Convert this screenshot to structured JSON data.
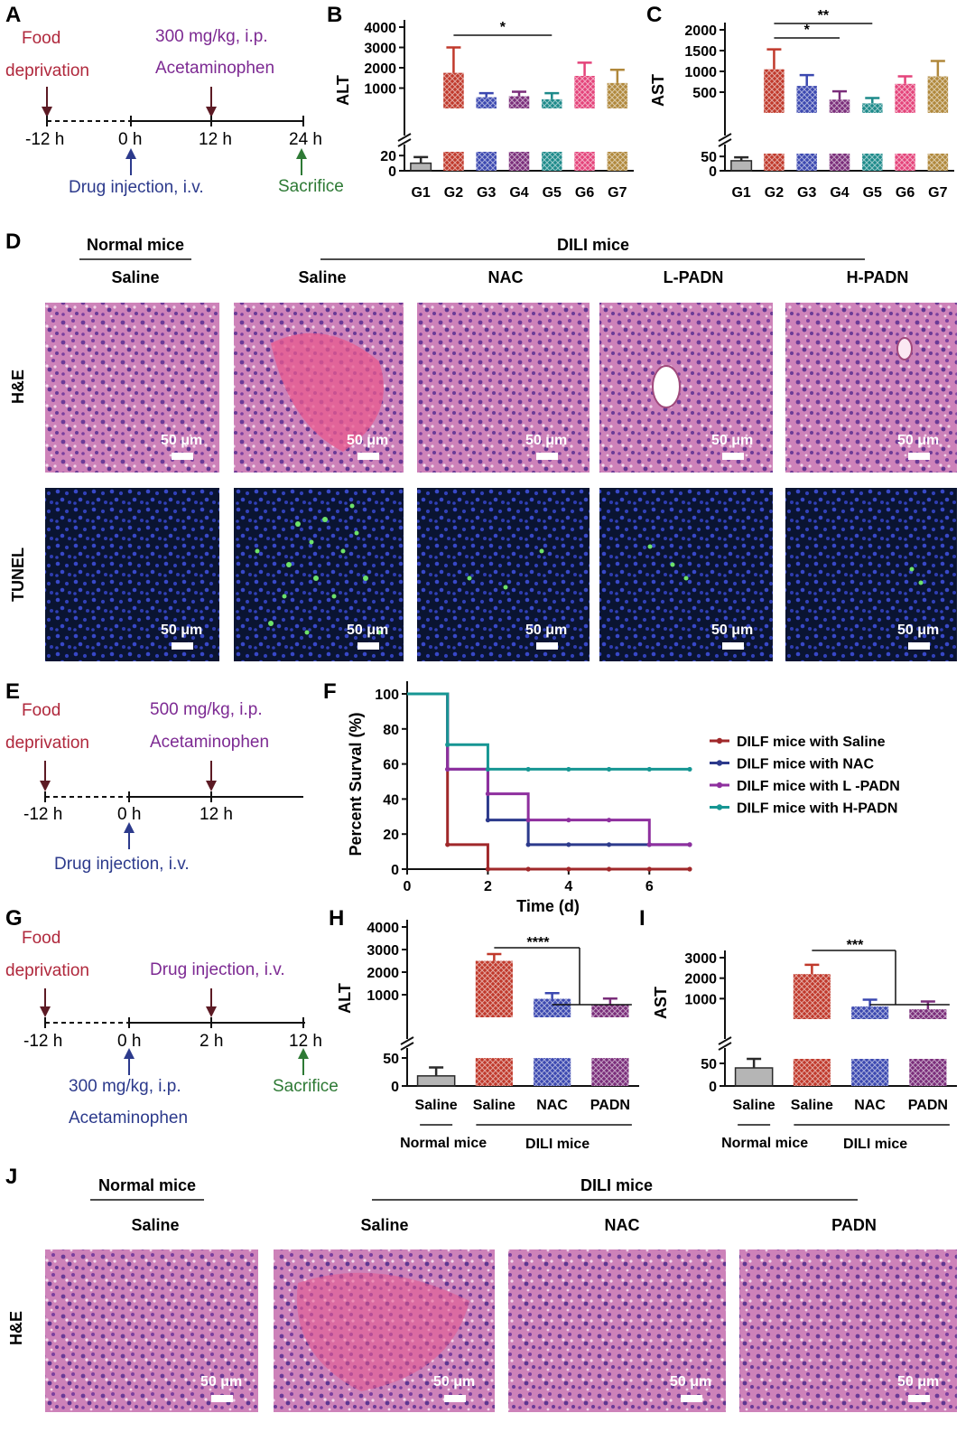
{
  "colors": {
    "food": "#b0283c",
    "apap": "#7d2a93",
    "drug": "#2c3a8c",
    "sac": "#2e7a35",
    "arrow": "#5c1a24",
    "he": "#c979b4",
    "tunel": "#101d3a",
    "tunel_nuc": "#3646c6",
    "tunel_pos": "#6ee36a",
    "groups": [
      "#2a2a2a",
      "#c0392b",
      "#3b48b0",
      "#7a2d7a",
      "#1d8a8a",
      "#e4437a",
      "#b0883b"
    ]
  },
  "panel_labels": [
    "A",
    "B",
    "C",
    "D",
    "E",
    "F",
    "G",
    "H",
    "I",
    "J"
  ],
  "scale_bar": "50 μm",
  "row_labels": {
    "he": "H&E",
    "tunel": "TUNEL"
  },
  "timeline_a": {
    "food_1": "Food",
    "food_2": "deprivation",
    "apap_1": "300 mg/kg, i.p.",
    "apap_2": "Acetaminophen",
    "t1": "-12 h",
    "t2": "0 h",
    "t3": "12 h",
    "t4": "24 h",
    "drug": "Drug injection, i.v.",
    "sac": "Sacrifice"
  },
  "timeline_e": {
    "food_1": "Food",
    "food_2": "deprivation",
    "apap_1": "500 mg/kg, i.p.",
    "apap_2": "Acetaminophen",
    "t1": "-12 h",
    "t2": "0 h",
    "t3": "12 h",
    "drug": "Drug injection, i.v."
  },
  "timeline_g": {
    "food_1": "Food",
    "food_2": "deprivation",
    "drug": "Drug injection, i.v.",
    "t1": "-12 h",
    "t2": "0 h",
    "t3": "2 h",
    "t4": "12 h",
    "apap_1": "300 mg/kg, i.p.",
    "apap_2": "Acetaminophen",
    "sac": "Sacrifice"
  },
  "panel_d": {
    "normal": "Normal mice",
    "dili": "DILI mice",
    "columns": [
      "Saline",
      "Saline",
      "NAC",
      "L-PADN",
      "H-PADN"
    ]
  },
  "panel_j": {
    "normal": "Normal mice",
    "dili": "DILI mice",
    "columns": [
      "Saline",
      "Saline",
      "NAC",
      "PADN"
    ]
  },
  "chart_data": [
    {
      "id": "B",
      "type": "bar",
      "ylabel": "ALT",
      "categories": [
        "G1",
        "G2",
        "G3",
        "G4",
        "G5",
        "G6",
        "G7"
      ],
      "values": [
        10,
        1750,
        550,
        600,
        450,
        1600,
        1250
      ],
      "errors": [
        8,
        1250,
        200,
        220,
        300,
        650,
        650
      ],
      "y_ticks_upper": [
        "4000",
        "3000",
        "2000",
        "1000"
      ],
      "y_ticks_lower": [
        "20",
        "0"
      ],
      "ylim_upper": [
        0,
        4000
      ],
      "ylim_lower": [
        0,
        25
      ],
      "significance": [
        "*"
      ]
    },
    {
      "id": "C",
      "type": "bar",
      "ylabel": "AST",
      "categories": [
        "G1",
        "G2",
        "G3",
        "G4",
        "G5",
        "G6",
        "G7"
      ],
      "values": [
        35,
        1050,
        650,
        320,
        230,
        700,
        880
      ],
      "errors": [
        12,
        480,
        260,
        200,
        130,
        180,
        370
      ],
      "y_ticks_upper": [
        "2000",
        "1500",
        "1000",
        "500"
      ],
      "y_ticks_lower": [
        "50",
        "0"
      ],
      "ylim_upper": [
        0,
        2000
      ],
      "ylim_lower": [
        0,
        60
      ],
      "significance": [
        "**",
        "*"
      ]
    },
    {
      "id": "F",
      "type": "line",
      "xlabel": "Time (d)",
      "ylabel": "Percent Surval (%)",
      "x_ticks": [
        "0",
        "2",
        "4",
        "6"
      ],
      "y_ticks": [
        "0",
        "20",
        "40",
        "60",
        "80",
        "100"
      ],
      "xlim": [
        0,
        7
      ],
      "ylim": [
        0,
        100
      ],
      "series": [
        {
          "name": "DILF mice with Saline",
          "color": "#a0282a",
          "times": [
            0,
            1,
            2,
            7
          ],
          "values": [
            100,
            14,
            0,
            0
          ]
        },
        {
          "name": "DILF mice with NAC",
          "color": "#2c3a8c",
          "times": [
            0,
            1,
            2,
            3,
            7
          ],
          "values": [
            100,
            57,
            28,
            14,
            14
          ]
        },
        {
          "name": "DILF mice with L -PADN",
          "color": "#8e2f9e",
          "times": [
            0,
            1,
            2,
            3,
            6,
            7
          ],
          "values": [
            100,
            57,
            43,
            28,
            14,
            14
          ]
        },
        {
          "name": "DILF mice with H-PADN",
          "color": "#169693",
          "times": [
            0,
            1,
            2,
            7
          ],
          "values": [
            100,
            71,
            57,
            57
          ]
        }
      ]
    },
    {
      "id": "H",
      "type": "bar",
      "ylabel": "ALT",
      "categories": [
        "Saline",
        "Saline",
        "NAC",
        "PADN"
      ],
      "group_labels": [
        "Normal mice",
        "DILI mice"
      ],
      "values": [
        18,
        2500,
        820,
        580
      ],
      "errors": [
        15,
        300,
        250,
        250
      ],
      "y_ticks_upper": [
        "4000",
        "3000",
        "2000",
        "1000"
      ],
      "y_ticks_lower": [
        "50",
        "0"
      ],
      "ylim_upper": [
        0,
        4000
      ],
      "ylim_lower": [
        0,
        50
      ],
      "significance": [
        "****"
      ]
    },
    {
      "id": "I",
      "type": "bar",
      "ylabel": "AST",
      "categories": [
        "Saline",
        "Saline",
        "NAC",
        "PADN"
      ],
      "group_labels": [
        "Normal mice",
        "DILI mice"
      ],
      "values": [
        40,
        2200,
        620,
        480
      ],
      "errors": [
        20,
        450,
        330,
        380
      ],
      "y_ticks_upper": [
        "3000",
        "2000",
        "1000"
      ],
      "y_ticks_lower": [
        "50",
        "0"
      ],
      "ylim_upper": [
        0,
        3000
      ],
      "ylim_lower": [
        0,
        60
      ],
      "significance": [
        "***"
      ]
    }
  ]
}
